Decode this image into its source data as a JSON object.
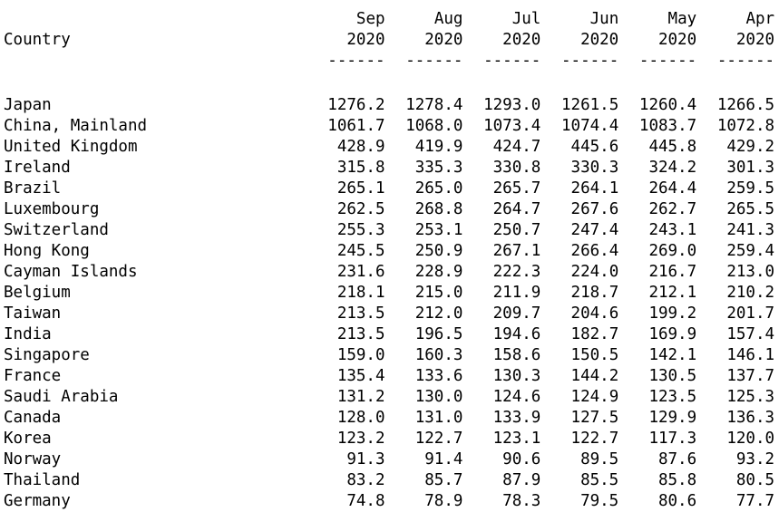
{
  "header": {
    "country_label": "Country",
    "months": [
      "Sep",
      "Aug",
      "Jul",
      "Jun",
      "May",
      "Apr"
    ],
    "years": [
      "2020",
      "2020",
      "2020",
      "2020",
      "2020",
      "2020"
    ],
    "dashes": [
      "------",
      "------",
      "------",
      "------",
      "------",
      "------"
    ]
  },
  "rows": [
    {
      "country": "Japan",
      "values": [
        "1276.2",
        "1278.4",
        "1293.0",
        "1261.5",
        "1260.4",
        "1266.5"
      ]
    },
    {
      "country": "China, Mainland",
      "values": [
        "1061.7",
        "1068.0",
        "1073.4",
        "1074.4",
        "1083.7",
        "1072.8"
      ]
    },
    {
      "country": "United Kingdom",
      "values": [
        "428.9",
        "419.9",
        "424.7",
        "445.6",
        "445.8",
        "429.2"
      ]
    },
    {
      "country": "Ireland",
      "values": [
        "315.8",
        "335.3",
        "330.8",
        "330.3",
        "324.2",
        "301.3"
      ]
    },
    {
      "country": "Brazil",
      "values": [
        "265.1",
        "265.0",
        "265.7",
        "264.1",
        "264.4",
        "259.5"
      ]
    },
    {
      "country": "Luxembourg",
      "values": [
        "262.5",
        "268.8",
        "264.7",
        "267.6",
        "262.7",
        "265.5"
      ]
    },
    {
      "country": "Switzerland",
      "values": [
        "255.3",
        "253.1",
        "250.7",
        "247.4",
        "243.1",
        "241.3"
      ]
    },
    {
      "country": "Hong Kong",
      "values": [
        "245.5",
        "250.9",
        "267.1",
        "266.4",
        "269.0",
        "259.4"
      ]
    },
    {
      "country": "Cayman Islands",
      "values": [
        "231.6",
        "228.9",
        "222.3",
        "224.0",
        "216.7",
        "213.0"
      ]
    },
    {
      "country": "Belgium",
      "values": [
        "218.1",
        "215.0",
        "211.9",
        "218.7",
        "212.1",
        "210.2"
      ]
    },
    {
      "country": "Taiwan",
      "values": [
        "213.5",
        "212.0",
        "209.7",
        "204.6",
        "199.2",
        "201.7"
      ]
    },
    {
      "country": "India",
      "values": [
        "213.5",
        "196.5",
        "194.6",
        "182.7",
        "169.9",
        "157.4"
      ]
    },
    {
      "country": "Singapore",
      "values": [
        "159.0",
        "160.3",
        "158.6",
        "150.5",
        "142.1",
        "146.1"
      ]
    },
    {
      "country": "France",
      "values": [
        "135.4",
        "133.6",
        "130.3",
        "144.2",
        "130.5",
        "137.7"
      ]
    },
    {
      "country": "Saudi Arabia",
      "values": [
        "131.2",
        "130.0",
        "124.6",
        "124.9",
        "123.5",
        "125.3"
      ]
    },
    {
      "country": "Canada",
      "values": [
        "128.0",
        "131.0",
        "133.9",
        "127.5",
        "129.9",
        "136.3"
      ]
    },
    {
      "country": "Korea",
      "values": [
        "123.2",
        "122.7",
        "123.1",
        "122.7",
        "117.3",
        "120.0"
      ]
    },
    {
      "country": "Norway",
      "values": [
        "91.3",
        "91.4",
        "90.6",
        "89.5",
        "87.6",
        "93.2"
      ]
    },
    {
      "country": "Thailand",
      "values": [
        "83.2",
        "85.7",
        "87.9",
        "85.5",
        "85.8",
        "80.5"
      ]
    },
    {
      "country": "Germany",
      "values": [
        "74.8",
        "78.9",
        "78.3",
        "79.5",
        "80.6",
        "77.7"
      ]
    }
  ]
}
